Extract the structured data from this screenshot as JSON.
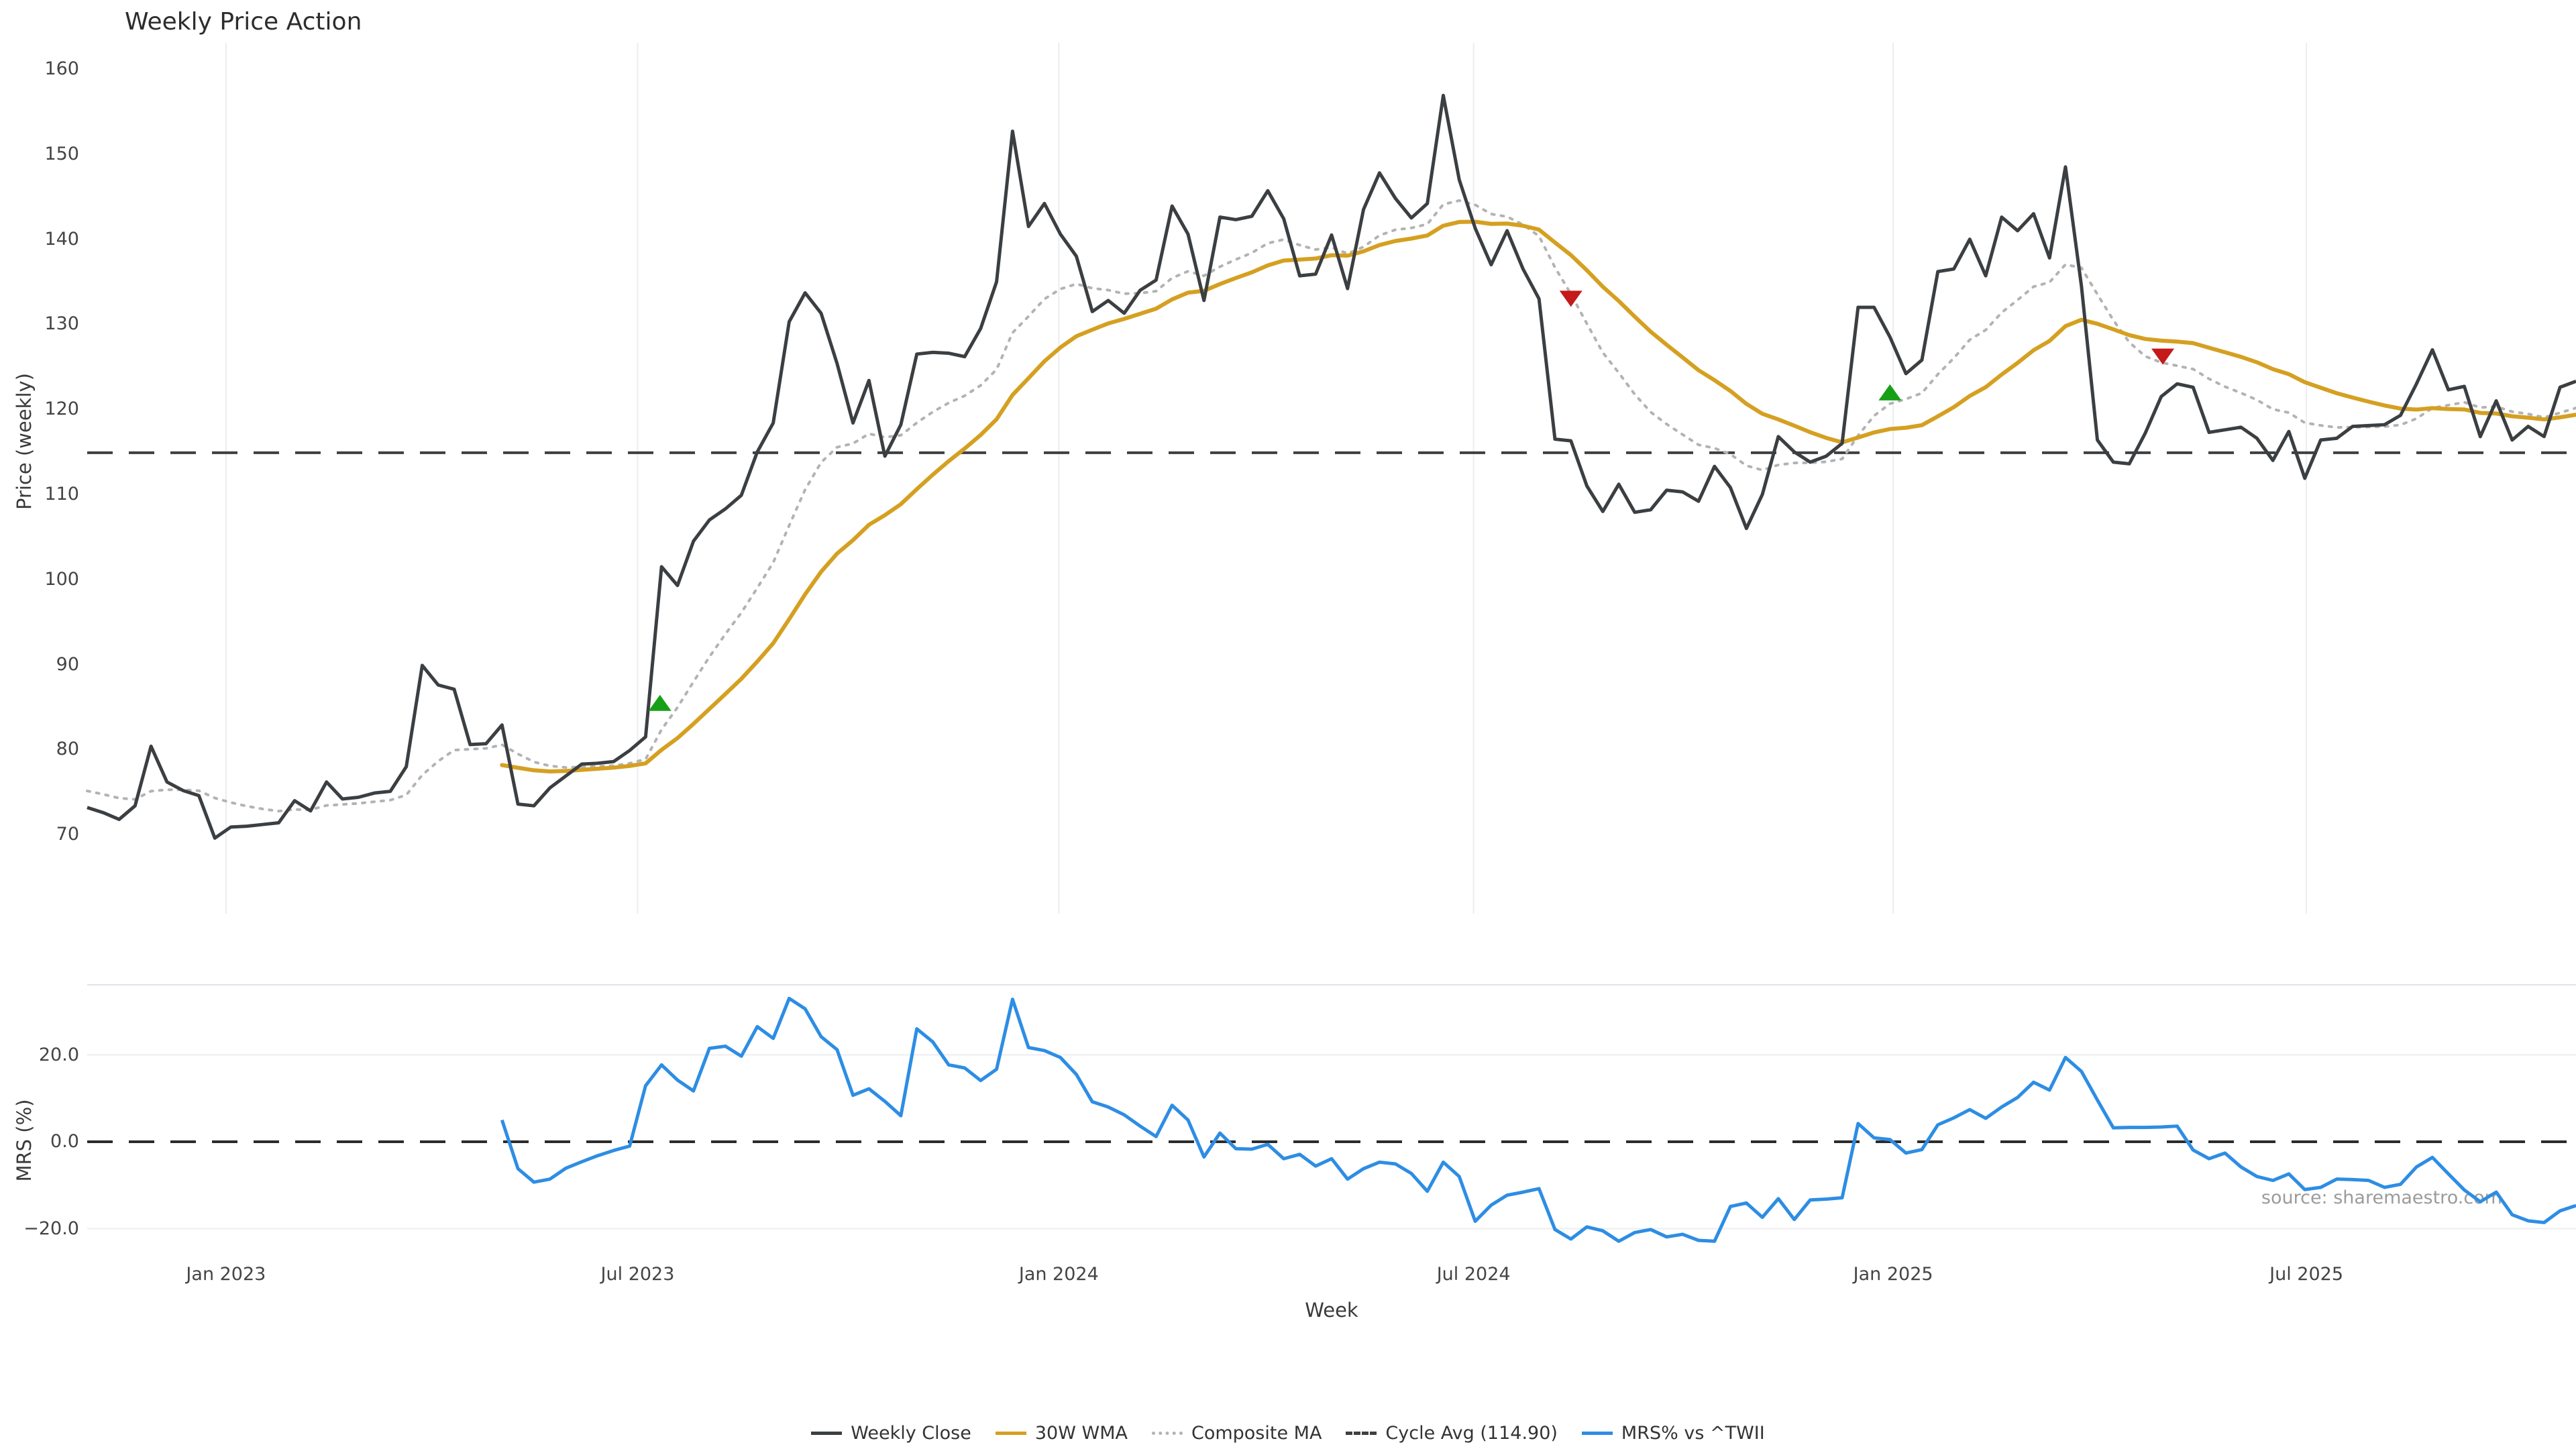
{
  "title": "Weekly Price Action",
  "source": "source: sharemaestro.com",
  "colors": {
    "weekly_close": "#3b3f42",
    "wma30": "#d5a021",
    "composite_ma": "#b3b3b3",
    "cycle_avg": "#3f3f3f",
    "mrs": "#2d8de4",
    "buy_marker": "#16a016",
    "sell_marker": "#c41a1a",
    "gridline": "#ededf2",
    "panel_border": "#e2e2ea"
  },
  "legend": [
    {
      "label": "Weekly Close",
      "style": "solid",
      "color": "#3b3f42"
    },
    {
      "label": "30W WMA",
      "style": "solid",
      "color": "#d5a021"
    },
    {
      "label": "Composite MA",
      "style": "dotted",
      "color": "#b3b3b3"
    },
    {
      "label": "Cycle Avg (114.90)",
      "style": "dashed",
      "color": "#3f3f3f"
    },
    {
      "label": "MRS% vs ^TWII",
      "style": "solid",
      "color": "#2d8de4"
    }
  ],
  "chart_data": {
    "type": "line",
    "x": {
      "label": "Week",
      "n_points": 157,
      "ticks": [
        {
          "label": "Jan 2023",
          "index": 8.7
        },
        {
          "label": "Jul 2023",
          "index": 34.5
        },
        {
          "label": "Jan 2024",
          "index": 60.9
        },
        {
          "label": "Jul 2024",
          "index": 86.9
        },
        {
          "label": "Jan 2025",
          "index": 113.2
        },
        {
          "label": "Jul 2025",
          "index": 139.1
        }
      ]
    },
    "panels": [
      {
        "name": "price",
        "ylabel": "Price (weekly)",
        "yticks": [
          160,
          150,
          140,
          130,
          120,
          110,
          100,
          90,
          80,
          70
        ],
        "ylim": [
          61,
          162
        ],
        "grid": "vertical-only",
        "cycle_avg": 114.9,
        "series": [
          {
            "name": "Weekly Close",
            "line": "solid",
            "color": "#3b3f42",
            "values": [
              73.2,
              72.6,
              71.8,
              73.4,
              80.4,
              76.2,
              75.2,
              74.6,
              69.6,
              70.9,
              71.0,
              71.2,
              71.4,
              74.0,
              72.8,
              76.2,
              74.2,
              74.4,
              74.9,
              75.1,
              78.0,
              89.9,
              87.6,
              87.1,
              80.6,
              80.7,
              82.9,
              73.6,
              73.4,
              75.5,
              76.9,
              78.3,
              78.4,
              78.6,
              79.9,
              81.5,
              101.5,
              99.3,
              104.5,
              107.0,
              108.3,
              109.9,
              115.0,
              118.4,
              130.3,
              133.7,
              131.3,
              125.4,
              118.4,
              123.4,
              114.5,
              118.2,
              126.5,
              126.7,
              126.6,
              126.2,
              129.5,
              135.0,
              152.7,
              141.5,
              144.2,
              140.6,
              138.0,
              131.5,
              132.8,
              131.3,
              134.0,
              135.2,
              143.9,
              140.6,
              132.8,
              142.6,
              142.3,
              142.7,
              145.7,
              142.4,
              135.7,
              135.9,
              140.5,
              134.2,
              143.5,
              147.8,
              144.8,
              142.5,
              144.2,
              156.9,
              147.0,
              141.3,
              137.0,
              141.0,
              136.5,
              133.0,
              116.5,
              116.3,
              111.0,
              108.0,
              111.2,
              107.9,
              108.2,
              110.5,
              110.3,
              109.2,
              113.3,
              110.8,
              106.0,
              110.0,
              116.8,
              115.0,
              113.8,
              114.5,
              116.0,
              132.0,
              132.0,
              128.5,
              124.2,
              125.8,
              136.2,
              136.5,
              140.0,
              135.7,
              142.6,
              141.0,
              143.0,
              137.8,
              148.5,
              134.5,
              116.4,
              113.8,
              113.6,
              117.2,
              121.5,
              123.0,
              122.6,
              117.3,
              117.6,
              117.9,
              116.6,
              114.0,
              117.4,
              111.9,
              116.4,
              116.6,
              118.0,
              118.1,
              118.2,
              119.3,
              123.0,
              127.0,
              122.3,
              122.7,
              116.8,
              121.0,
              116.4,
              118.0,
              116.8,
              122.6,
              123.3
            ]
          },
          {
            "name": "30W WMA",
            "line": "solid",
            "color": "#d5a021",
            "derived": "30-week weighted MA of Weekly Close"
          },
          {
            "name": "Composite MA",
            "line": "dotted",
            "color": "#b3b3b3",
            "derived": "composite smoothing of Weekly Close"
          },
          {
            "name": "Cycle Avg",
            "line": "dashed",
            "color": "#3f3f3f",
            "constant": 114.9
          }
        ],
        "signals": [
          {
            "type": "buy",
            "week_index": 35.9,
            "price": 85.5
          },
          {
            "type": "sell",
            "week_index": 93.0,
            "price": 133.0
          },
          {
            "type": "buy",
            "week_index": 113.0,
            "price": 122.0
          },
          {
            "type": "sell",
            "week_index": 130.1,
            "price": 126.2
          }
        ]
      },
      {
        "name": "mrs",
        "ylabel": "MRS (%)",
        "ytick_labels": [
          "20.0",
          "0.0",
          "−20.0"
        ],
        "ytick_values": [
          20,
          0,
          -20
        ],
        "ylim": [
          -31,
          42
        ],
        "grid": "horizontal-only",
        "zero_line": "dashed",
        "series": [
          {
            "name": "MRS% vs ^TWII",
            "line": "solid",
            "color": "#2d8de4",
            "start_index": 26,
            "values": [
              5.0,
              -6.2,
              -9.3,
              -8.6,
              -6.1,
              -4.6,
              -3.2,
              -2.0,
              -1.0,
              12.9,
              17.7,
              14.2,
              11.7,
              21.5,
              22.0,
              19.7,
              26.5,
              23.8,
              33.0,
              30.6,
              24.2,
              21.2,
              10.7,
              12.2,
              9.3,
              6.0,
              26.0,
              23.0,
              17.7,
              17.0,
              14.1,
              16.7,
              32.8,
              21.7,
              21.0,
              19.4,
              15.5,
              9.2,
              8.0,
              6.2,
              3.6,
              1.2,
              8.4,
              5.0,
              -3.5,
              2.0,
              -1.6,
              -1.7,
              -0.6,
              -3.9,
              -2.9,
              -5.6,
              -3.9,
              -8.6,
              -6.2,
              -4.7,
              -5.1,
              -7.3,
              -11.4,
              -4.7,
              -8.0,
              -18.3,
              -14.6,
              -12.3,
              -11.6,
              -10.8,
              -20.2,
              -22.4,
              -19.6,
              -20.5,
              -22.9,
              -20.9,
              -20.2,
              -21.9,
              -21.3,
              -22.7,
              -22.9,
              -14.9,
              -14.1,
              -17.4,
              -13.1,
              -17.9,
              -13.4,
              -13.2,
              -12.9,
              4.2,
              0.9,
              0.5,
              -2.6,
              -1.8,
              3.9,
              5.5,
              7.4,
              5.4,
              8.0,
              10.2,
              13.7,
              11.9,
              19.4,
              16.2,
              9.6,
              3.2,
              3.3,
              3.3,
              3.4,
              3.6,
              -1.9,
              -3.9,
              -2.6,
              -5.8,
              -8.0,
              -8.9,
              -7.4,
              -11.0,
              -10.5,
              -8.6,
              -8.7,
              -8.9,
              -10.5,
              -9.8,
              -5.8,
              -3.6,
              -7.4,
              -11.1,
              -13.8,
              -11.6,
              -16.8,
              -18.2,
              -18.6,
              -15.9,
              -14.7
            ]
          }
        ]
      }
    ]
  }
}
